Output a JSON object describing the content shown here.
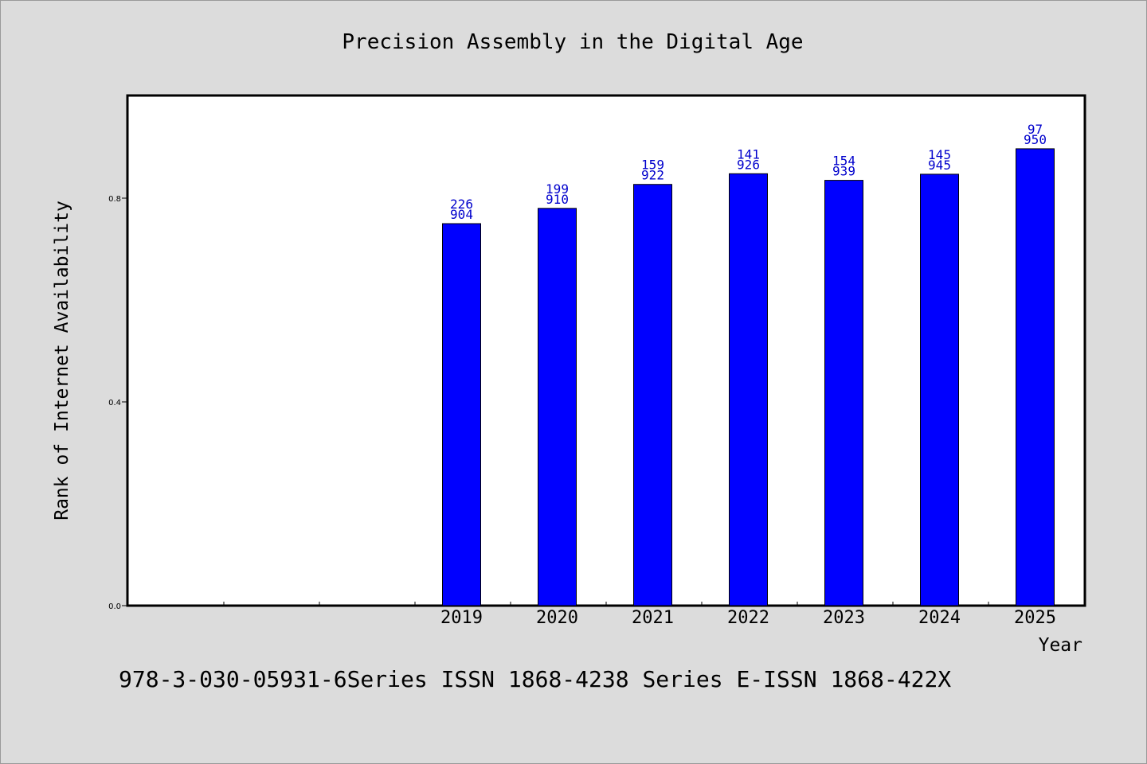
{
  "colors": {
    "background": "#dcdcdc",
    "plot_background": "#ffffff",
    "bar_fill": "#0000ff",
    "data_label": "#0000cc",
    "axis": "#000000"
  },
  "footer": {
    "text": "978-3-030-05931-6Series ISSN 1868-4238 Series E-ISSN 1868-422X"
  },
  "chart_data": {
    "type": "bar",
    "title": "Precision Assembly in the Digital Age",
    "xlabel": "Year",
    "ylabel": "Rank of Internet Availability",
    "ylim": [
      0,
      1.0
    ],
    "yticks": [
      0.0,
      0.4,
      0.8
    ],
    "ytick_labels": [
      "0.0",
      "0.4",
      "0.8"
    ],
    "categories": [
      "",
      "",
      "",
      "2019",
      "2020",
      "2021",
      "2022",
      "2023",
      "2024",
      "2025"
    ],
    "values": [
      null,
      null,
      null,
      0.75,
      0.78,
      0.827,
      0.848,
      0.835,
      0.847,
      0.897
    ],
    "label_top": [
      "",
      "",
      "",
      "226",
      "199",
      "159",
      "141",
      "154",
      "145",
      "97"
    ],
    "label_bottom": [
      "",
      "",
      "",
      "904",
      "910",
      "922",
      "926",
      "939",
      "945",
      "950"
    ],
    "grid": false,
    "legend": "none"
  }
}
